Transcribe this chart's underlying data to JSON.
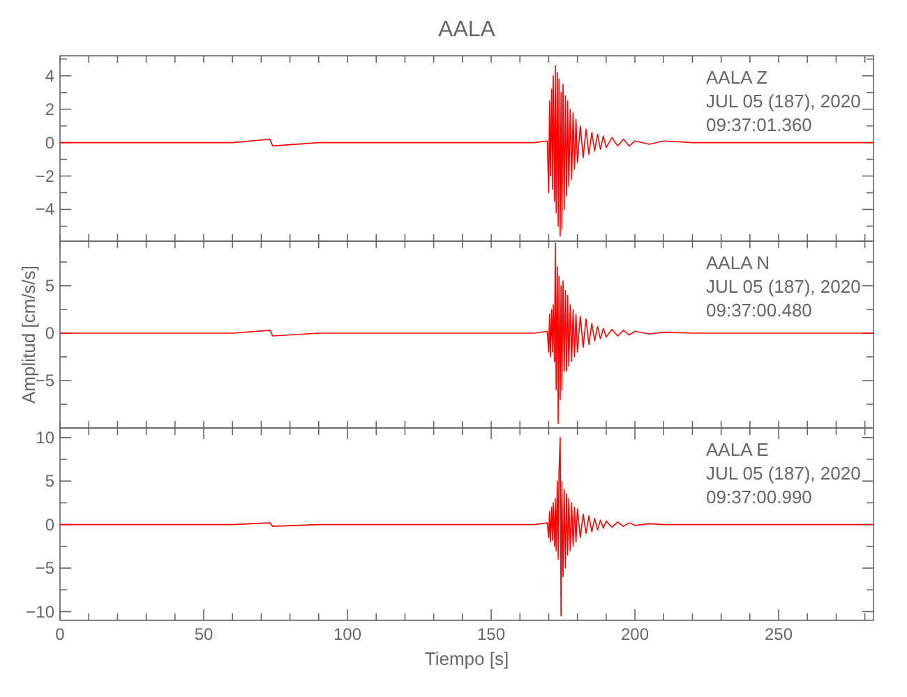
{
  "chart_data": [
    {
      "type": "line",
      "title": "AALA",
      "tick_labels": "y",
      "x": [
        0,
        20,
        40,
        60,
        73,
        74,
        90,
        110,
        130,
        150,
        165,
        169.5,
        170,
        170.3,
        170.6,
        171,
        171.3,
        171.6,
        172,
        172.3,
        172.6,
        173,
        173.3,
        173.6,
        174,
        174.3,
        174.6,
        175,
        175.4,
        175.8,
        176.2,
        176.6,
        177,
        177.5,
        178,
        178.5,
        179,
        179.5,
        180,
        181,
        182,
        183,
        184,
        185,
        186,
        187,
        188,
        189,
        190,
        192,
        194,
        196,
        198,
        200,
        205,
        210,
        220,
        240,
        260,
        283
      ],
      "series": [
        {
          "color": "#ff0000",
          "values": [
            0,
            0,
            0,
            0,
            0.2,
            -0.2,
            0,
            0,
            0,
            0,
            0,
            0.1,
            -3,
            2.5,
            -2,
            3.2,
            -2.8,
            4,
            -3.5,
            4.6,
            -4.2,
            4.2,
            -5,
            3.8,
            -5.6,
            3,
            -5.2,
            3.5,
            -4,
            2.8,
            -3.2,
            2.5,
            -2.6,
            2,
            -2.2,
            1.8,
            -1.6,
            1.4,
            -1.2,
            1,
            -0.9,
            0.8,
            -0.7,
            0.6,
            -0.5,
            0.5,
            -0.4,
            0.4,
            -0.3,
            0.3,
            -0.2,
            0.2,
            -0.2,
            0.1,
            -0.1,
            0.1,
            0,
            0,
            0,
            0
          ]
        }
      ],
      "xlim": [
        0,
        283
      ],
      "ylim": [
        -5.9,
        5.2
      ],
      "xticks": [
        {
          "value": 0,
          "label": null
        },
        {
          "value": 10,
          "label": null
        },
        {
          "value": 20,
          "label": null
        },
        {
          "value": 30,
          "label": null
        },
        {
          "value": 40,
          "label": null
        },
        {
          "value": 50,
          "label": null
        },
        {
          "value": 60,
          "label": null
        },
        {
          "value": 70,
          "label": null
        },
        {
          "value": 80,
          "label": null
        },
        {
          "value": 90,
          "label": null
        },
        {
          "value": 100,
          "label": null
        },
        {
          "value": 110,
          "label": null
        },
        {
          "value": 120,
          "label": null
        },
        {
          "value": 130,
          "label": null
        },
        {
          "value": 140,
          "label": null
        },
        {
          "value": 150,
          "label": null
        },
        {
          "value": 160,
          "label": null
        },
        {
          "value": 170,
          "label": null
        },
        {
          "value": 180,
          "label": null
        },
        {
          "value": 190,
          "label": null
        },
        {
          "value": 200,
          "label": null
        },
        {
          "value": 210,
          "label": null
        },
        {
          "value": 220,
          "label": null
        },
        {
          "value": 230,
          "label": null
        },
        {
          "value": 240,
          "label": null
        },
        {
          "value": 250,
          "label": null
        },
        {
          "value": 260,
          "label": null
        },
        {
          "value": 270,
          "label": null
        },
        {
          "value": 280,
          "label": null
        }
      ],
      "yticks": [
        {
          "value": -5,
          "label": null
        },
        {
          "value": -4,
          "label": "−4"
        },
        {
          "value": -3,
          "label": null
        },
        {
          "value": -2,
          "label": "−2"
        },
        {
          "value": -1,
          "label": null
        },
        {
          "value": 0,
          "label": "0"
        },
        {
          "value": 1,
          "label": null
        },
        {
          "value": 2,
          "label": "2"
        },
        {
          "value": 3,
          "label": null
        },
        {
          "value": 4,
          "label": "4"
        },
        {
          "value": 5,
          "label": null
        }
      ],
      "annotations": [
        "AALA   Z",
        "JUL 05 (187), 2020",
        "09:37:01.360"
      ]
    },
    {
      "type": "line",
      "ylabel": "Amplitud [cm/s/s]",
      "tick_labels": "y",
      "x": [
        0,
        20,
        40,
        60,
        73,
        74,
        90,
        110,
        130,
        150,
        165,
        169.5,
        170,
        170.3,
        170.6,
        171,
        171.3,
        171.6,
        172,
        172.3,
        172.6,
        173,
        173.3,
        173.6,
        174,
        174.3,
        174.6,
        175,
        175.4,
        175.8,
        176.2,
        176.6,
        177,
        177.5,
        178,
        178.5,
        179,
        179.5,
        180,
        181,
        182,
        183,
        184,
        185,
        186,
        187,
        188,
        189,
        190,
        192,
        194,
        196,
        198,
        200,
        205,
        210,
        220,
        240,
        260,
        283
      ],
      "series": [
        {
          "color": "#ff0000",
          "values": [
            0,
            0,
            0,
            0,
            0.3,
            -0.3,
            0,
            0,
            0,
            0,
            0,
            0.2,
            -2,
            2,
            -2.5,
            2.5,
            -2,
            3,
            -3,
            9.5,
            -6,
            7,
            -9.5,
            6,
            -7,
            5,
            -6,
            5.5,
            -4,
            4.5,
            -4,
            4,
            -3.5,
            3,
            -3,
            2.5,
            -2.5,
            2,
            -2,
            1.8,
            -1.5,
            1.5,
            -1.2,
            1,
            -0.8,
            0.7,
            -0.6,
            0.5,
            -0.4,
            0.4,
            -0.3,
            0.3,
            -0.2,
            0.2,
            -0.1,
            0.1,
            0,
            0,
            0,
            0
          ]
        }
      ],
      "xlim": [
        0,
        283
      ],
      "ylim": [
        -10,
        9.7
      ],
      "xticks": [
        {
          "value": 0,
          "label": null
        },
        {
          "value": 10,
          "label": null
        },
        {
          "value": 20,
          "label": null
        },
        {
          "value": 30,
          "label": null
        },
        {
          "value": 40,
          "label": null
        },
        {
          "value": 50,
          "label": null
        },
        {
          "value": 60,
          "label": null
        },
        {
          "value": 70,
          "label": null
        },
        {
          "value": 80,
          "label": null
        },
        {
          "value": 90,
          "label": null
        },
        {
          "value": 100,
          "label": null
        },
        {
          "value": 110,
          "label": null
        },
        {
          "value": 120,
          "label": null
        },
        {
          "value": 130,
          "label": null
        },
        {
          "value": 140,
          "label": null
        },
        {
          "value": 150,
          "label": null
        },
        {
          "value": 160,
          "label": null
        },
        {
          "value": 170,
          "label": null
        },
        {
          "value": 180,
          "label": null
        },
        {
          "value": 190,
          "label": null
        },
        {
          "value": 200,
          "label": null
        },
        {
          "value": 210,
          "label": null
        },
        {
          "value": 220,
          "label": null
        },
        {
          "value": 230,
          "label": null
        },
        {
          "value": 240,
          "label": null
        },
        {
          "value": 250,
          "label": null
        },
        {
          "value": 260,
          "label": null
        },
        {
          "value": 270,
          "label": null
        },
        {
          "value": 280,
          "label": null
        }
      ],
      "yticks": [
        {
          "value": -7.5,
          "label": null
        },
        {
          "value": -5,
          "label": "−5"
        },
        {
          "value": -2.5,
          "label": null
        },
        {
          "value": 0,
          "label": "0"
        },
        {
          "value": 2.5,
          "label": null
        },
        {
          "value": 5,
          "label": "5"
        },
        {
          "value": 7.5,
          "label": null
        }
      ],
      "annotations": [
        "AALA   N",
        "JUL 05 (187), 2020",
        "09:37:00.480"
      ]
    },
    {
      "type": "line",
      "xlabel": "Tiempo [s]",
      "x": [
        0,
        20,
        40,
        60,
        73,
        74,
        90,
        110,
        130,
        150,
        165,
        169.5,
        170,
        170.3,
        170.6,
        171,
        171.3,
        171.6,
        172,
        172.3,
        172.6,
        173,
        173.3,
        173.6,
        174,
        174.3,
        174.6,
        175,
        175.4,
        175.8,
        176.2,
        176.6,
        177,
        177.5,
        178,
        178.5,
        179,
        179.5,
        180,
        181,
        182,
        183,
        184,
        185,
        186,
        187,
        188,
        189,
        190,
        192,
        194,
        196,
        198,
        200,
        205,
        210,
        220,
        240,
        260,
        283
      ],
      "series": [
        {
          "color": "#ff0000",
          "values": [
            0,
            0,
            0,
            0,
            0.2,
            -0.2,
            0,
            0,
            0,
            0,
            0,
            0.2,
            -1.5,
            1.5,
            -2,
            2,
            -1.8,
            2.5,
            -2.5,
            3,
            -3,
            5,
            -4,
            6,
            10,
            -10.5,
            5,
            -6,
            4,
            -5,
            3.5,
            -3.5,
            3,
            -3,
            2.5,
            -2.5,
            2,
            -2,
            1.8,
            -1.5,
            1.2,
            -1,
            1,
            -0.8,
            0.7,
            -0.6,
            0.5,
            -0.4,
            0.4,
            -0.3,
            0.3,
            -0.2,
            0.2,
            -0.1,
            0.1,
            0,
            0,
            0,
            0,
            0
          ]
        }
      ],
      "xlim": [
        0,
        283
      ],
      "ylim": [
        -11,
        11.1
      ],
      "xticks": [
        {
          "value": 0,
          "label": "0"
        },
        {
          "value": 10,
          "label": null
        },
        {
          "value": 20,
          "label": null
        },
        {
          "value": 30,
          "label": null
        },
        {
          "value": 40,
          "label": null
        },
        {
          "value": 50,
          "label": "50"
        },
        {
          "value": 60,
          "label": null
        },
        {
          "value": 70,
          "label": null
        },
        {
          "value": 80,
          "label": null
        },
        {
          "value": 90,
          "label": null
        },
        {
          "value": 100,
          "label": "100"
        },
        {
          "value": 110,
          "label": null
        },
        {
          "value": 120,
          "label": null
        },
        {
          "value": 130,
          "label": null
        },
        {
          "value": 140,
          "label": null
        },
        {
          "value": 150,
          "label": "150"
        },
        {
          "value": 160,
          "label": null
        },
        {
          "value": 170,
          "label": null
        },
        {
          "value": 180,
          "label": null
        },
        {
          "value": 190,
          "label": null
        },
        {
          "value": 200,
          "label": "200"
        },
        {
          "value": 210,
          "label": null
        },
        {
          "value": 220,
          "label": null
        },
        {
          "value": 230,
          "label": null
        },
        {
          "value": 240,
          "label": null
        },
        {
          "value": 250,
          "label": "250"
        },
        {
          "value": 260,
          "label": null
        },
        {
          "value": 270,
          "label": null
        },
        {
          "value": 280,
          "label": null
        }
      ],
      "yticks": [
        {
          "value": -10,
          "label": "−10"
        },
        {
          "value": -7.5,
          "label": null
        },
        {
          "value": -5,
          "label": "−5"
        },
        {
          "value": -2.5,
          "label": null
        },
        {
          "value": 0,
          "label": "0"
        },
        {
          "value": 2.5,
          "label": null
        },
        {
          "value": 5,
          "label": "5"
        },
        {
          "value": 7.5,
          "label": null
        },
        {
          "value": 10,
          "label": "10"
        }
      ],
      "annotations": [
        "AALA   E",
        "JUL 05 (187), 2020",
        "09:37:00.990"
      ]
    }
  ]
}
